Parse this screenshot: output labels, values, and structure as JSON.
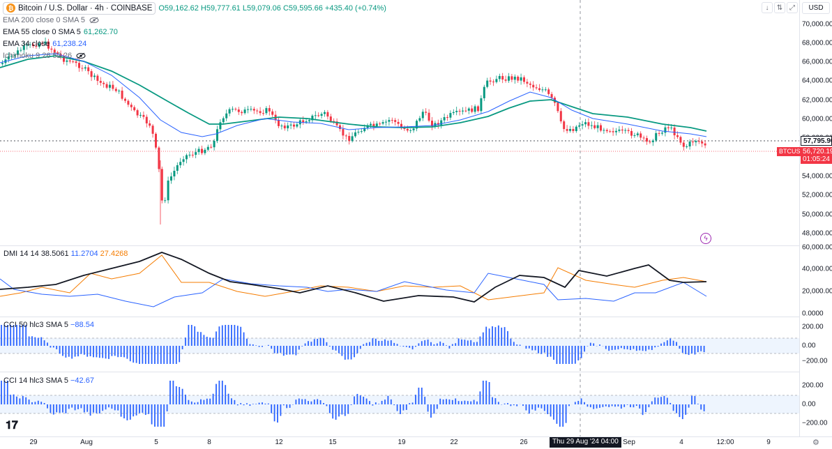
{
  "header": {
    "symbol_title": "Bitcoin / U.S. Dollar · 4h · COINBASE",
    "ohlc": "O59,162.62 H59,777.61 L59,079.06 C59,595.66 +435.40 (+0.74%)"
  },
  "indicators": [
    {
      "name": "EMA 200 close 0 SMA 5",
      "value": "",
      "color": "#6a6d78"
    },
    {
      "name": "EMA 55 close 0 SMA 5",
      "value": "61,262.70",
      "color": "#089981"
    },
    {
      "name": "EMA 34 close",
      "value": "61,238.24",
      "color": "#2962ff"
    },
    {
      "name": "Ichimoku 9 26 52 26",
      "value": "",
      "color": "#6a6d78"
    }
  ],
  "panes": {
    "dmi": {
      "label": "DMI 14 14",
      "v1": "38.5061",
      "v2": "11.2704",
      "v3": "27.4268",
      "c2": "#2962ff",
      "c3": "#f57c00"
    },
    "cci50": {
      "label": "CCI 50 hlc3 SMA 5",
      "value": "−88.54",
      "color": "#2962ff"
    },
    "cci14": {
      "label": "CCI 14 hlc3 SMA 5",
      "value": "−42.67",
      "color": "#2962ff"
    }
  },
  "controls": {
    "currency": "USD",
    "down_arrow": "↓",
    "up_down_arrow": "⇅",
    "maximize": "⤢"
  },
  "price_axis": [
    "70,000.00",
    "68,000.00",
    "66,000.00",
    "64,000.00",
    "62,000.00",
    "60,000.00",
    "58,000.00",
    "56,000.00",
    "54,000.00",
    "52,000.00",
    "50,000.00",
    "48,000.00"
  ],
  "price_tags": {
    "last_price": "57,795.90",
    "symbol": "BTCUSD",
    "current_price": "56,720.19",
    "countdown": "01:05:24"
  },
  "dmi_axis": [
    "60,000.00",
    "40,000.00",
    "20,000.00",
    "0.0000"
  ],
  "cci50_axis": [
    "200.00",
    "0.00",
    "−200.00"
  ],
  "cci14_axis": [
    "200.00",
    "0.00",
    "−200.00"
  ],
  "time_axis": [
    "29",
    "Aug",
    "5",
    "8",
    "12",
    "15",
    "19",
    "22",
    "26",
    "Sep",
    "4",
    "12:00",
    "9"
  ],
  "crosshair_time": "Thu 29 Aug '24  04:00",
  "colors": {
    "up": "#089981",
    "down": "#f23645",
    "ema34": "#2962ff",
    "ema55": "#089981",
    "dmi_adx": "#131722",
    "dmi_plus": "#2962ff",
    "dmi_minus": "#f57c00",
    "cci_bars": "#2962ff"
  }
}
